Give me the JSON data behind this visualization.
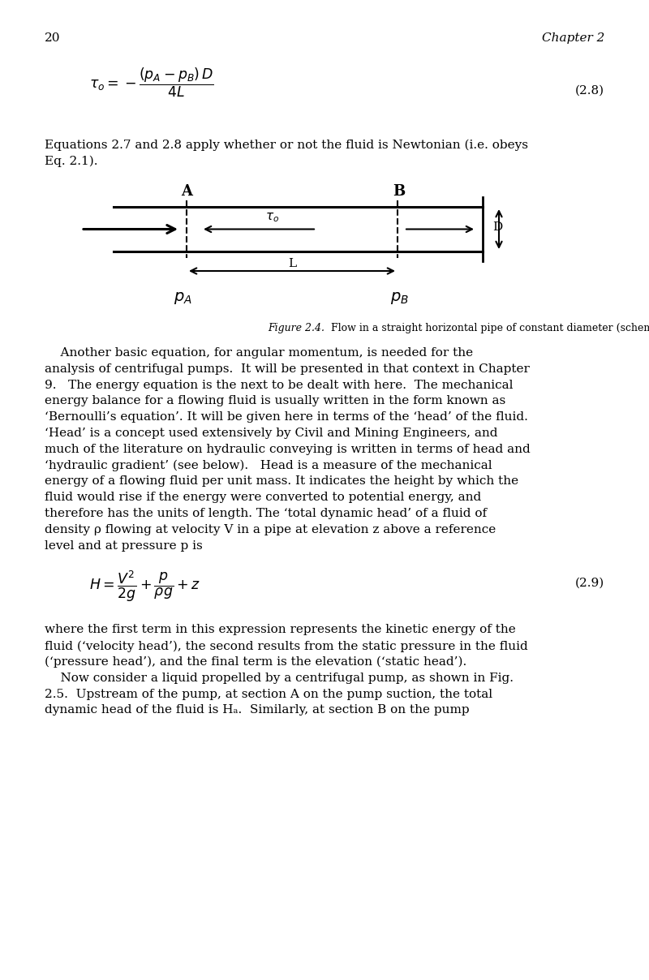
{
  "page_number": "20",
  "chapter_header": "Chapter 2",
  "bg_color": "#ffffff",
  "text_color": "#000000",
  "eq28_label": "(2.8)",
  "eq29_label": "(2.9)",
  "fig_caption_italic": "Figure 2.4.",
  "fig_caption_normal": "  Flow in a straight horizontal pipe of constant diameter (schematic)",
  "para2_lines": [
    "    Another basic equation, for angular momentum, is needed for the",
    "analysis of centrifugal pumps.  It will be presented in that context in Chapter",
    "9.   The energy equation is the next to be dealt with here.  The mechanical",
    "energy balance for a flowing fluid is usually written in the form known as",
    "‘Bernoulli’s equation’. It will be given here in terms of the ‘head’ of the fluid.",
    "‘Head’ is a concept used extensively by Civil and Mining Engineers, and",
    "much of the literature on hydraulic conveying is written in terms of head and",
    "‘hydraulic gradient’ (see below).   Head is a measure of the mechanical",
    "energy of a flowing fluid per unit mass. It indicates the height by which the",
    "fluid would rise if the energy were converted to potential energy, and",
    "therefore has the units of length. The ‘total dynamic head’ of a fluid of",
    "density ρ flowing at velocity V in a pipe at elevation z above a reference",
    "level and at pressure p is"
  ],
  "para3_lines": [
    "where the first term in this expression represents the kinetic energy of the",
    "fluid (‘velocity head’), the second results from the static pressure in the fluid",
    "(‘pressure head’), and the final term is the elevation (‘static head’).",
    "    Now consider a liquid propelled by a centrifugal pump, as shown in Fig.",
    "2.5.  Upstream of the pump, at section A on the pump suction, the total",
    "dynamic head of the fluid is Hₐ.  Similarly, at section B on the pump"
  ]
}
